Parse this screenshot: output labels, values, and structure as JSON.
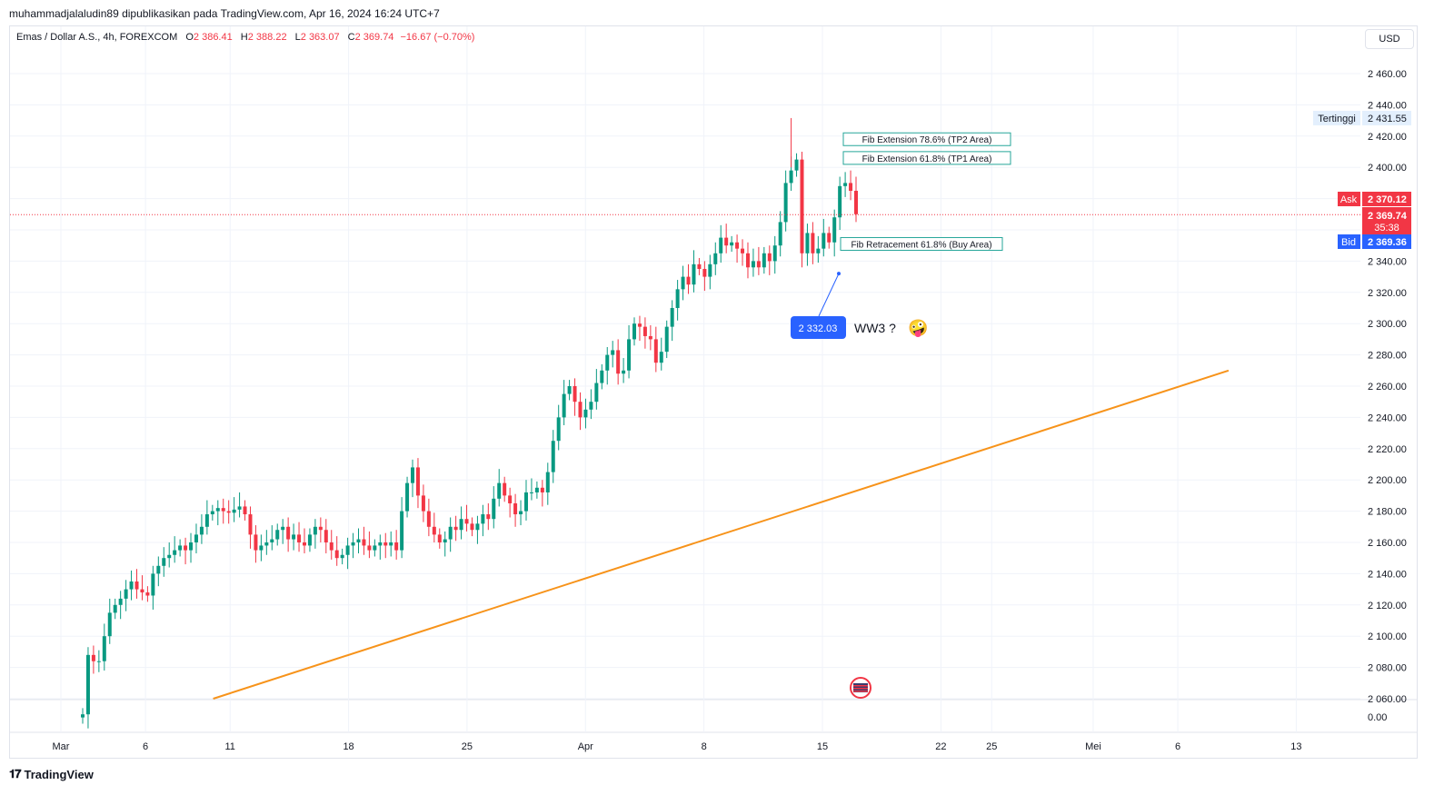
{
  "header": {
    "publisher_line": "muhammadjalaludin89 dipublikasikan pada TradingView.com, Apr 16, 2024 16:24 UTC+7"
  },
  "legend": {
    "symbol": "Emas / Dollar A.S., 4h, FOREXCOM",
    "o_label": "O",
    "o": "2 386.41",
    "h_label": "H",
    "h": "2 388.22",
    "l_label": "L",
    "l": "2 363.07",
    "c_label": "C",
    "c": "2 369.74",
    "change": "−16.67 (−0.70%)"
  },
  "currency_button": "USD",
  "brand": {
    "name": "TradingView"
  },
  "colors": {
    "up": "#089981",
    "down": "#f23645",
    "trendline": "#f7931a",
    "fib_border": "#26a69a",
    "bid": "#2962ff",
    "ask": "#f23645",
    "grid": "#f0f3fa"
  },
  "chart_data": {
    "type": "candlestick",
    "instrument": "Emas / Dollar A.S.",
    "interval": "4h",
    "ylim": [
      2050,
      2470
    ],
    "y_ticks": [
      2460,
      2440,
      2420,
      2400,
      2380,
      2360,
      2340,
      2320,
      2300,
      2280,
      2260,
      2240,
      2220,
      2200,
      2180,
      2160,
      2140,
      2120,
      2100,
      2080,
      2060
    ],
    "y_tick_labels": [
      "2 460.00",
      "2 440.00",
      "2 420.00",
      "2 400.00",
      "2 380.00",
      "2 360.00",
      "2 340.00",
      "2 320.00",
      "2 300.00",
      "2 280.00",
      "2 260.00",
      "2 240.00",
      "2 220.00",
      "2 200.00",
      "2 180.00",
      "2 160.00",
      "2 140.00",
      "2 120.00",
      "2 100.00",
      "2 080.00",
      "2 060.00"
    ],
    "y_bottom_label": "0.00",
    "x_labels": [
      "Mar",
      "6",
      "11",
      "18",
      "25",
      "Apr",
      "8",
      "15",
      "22",
      "25",
      "Mei",
      "6",
      "13"
    ],
    "x_label_dates": [
      "2024-03-01",
      "2024-03-06",
      "2024-03-11",
      "2024-03-18",
      "2024-03-25",
      "2024-04-01",
      "2024-04-08",
      "2024-04-15",
      "2024-04-22",
      "2024-04-25",
      "2024-05-01",
      "2024-05-06",
      "2024-05-13"
    ],
    "candles_close": [
      2050,
      2088,
      2084,
      2084,
      2100,
      2115,
      2120,
      2124,
      2130,
      2135,
      2130,
      2128,
      2126,
      2140,
      2145,
      2150,
      2152,
      2155,
      2158,
      2155,
      2160,
      2165,
      2170,
      2178,
      2180,
      2182,
      2180,
      2179,
      2181,
      2183,
      2178,
      2165,
      2155,
      2158,
      2160,
      2162,
      2168,
      2170,
      2162,
      2165,
      2160,
      2158,
      2165,
      2170,
      2168,
      2160,
      2155,
      2150,
      2152,
      2158,
      2160,
      2162,
      2158,
      2155,
      2158,
      2160,
      2158,
      2160,
      2155,
      2180,
      2198,
      2208,
      2190,
      2180,
      2170,
      2165,
      2160,
      2162,
      2170,
      2168,
      2175,
      2172,
      2168,
      2172,
      2178,
      2175,
      2188,
      2198,
      2190,
      2185,
      2178,
      2180,
      2192,
      2192,
      2195,
      2192,
      2205,
      2225,
      2240,
      2255,
      2260,
      2250,
      2240,
      2245,
      2250,
      2262,
      2270,
      2280,
      2283,
      2268,
      2270,
      2290,
      2300,
      2298,
      2292,
      2290,
      2275,
      2282,
      2298,
      2310,
      2322,
      2330,
      2325,
      2338,
      2335,
      2330,
      2338,
      2345,
      2355,
      2350,
      2352,
      2348,
      2345,
      2336,
      2340,
      2336,
      2345,
      2340,
      2350,
      2365,
      2390,
      2398,
      2405,
      2345,
      2358,
      2345,
      2348,
      2358,
      2352,
      2368,
      2388,
      2390,
      2385,
      2370
    ],
    "candles_open_first": 2048,
    "wick_extremes": {
      "max_high": 2431.55,
      "min_low": 2050
    },
    "last_price": {
      "value": "2 369.74",
      "countdown": "35:38"
    },
    "ask": {
      "label": "Ask",
      "value": "2 370.12"
    },
    "bid": {
      "label": "Bid",
      "value": "2 369.36"
    },
    "highest": {
      "label": "Tertinggi",
      "value": "2 431.55"
    },
    "fib_levels": [
      {
        "label": "Fib Extension 78.6% (TP2 Area)",
        "price": 2418
      },
      {
        "label": "Fib Extension 61.8% (TP1 Area)",
        "price": 2406
      },
      {
        "label": "Fib Retracement 61.8% (Buy Area)",
        "price": 2351
      }
    ],
    "callout": {
      "price_label": "2 332.03",
      "text": "WW3 ?",
      "emoji": "🤪"
    },
    "trendline": {
      "start": {
        "x": "2024-03-10",
        "y": 2060
      },
      "end": {
        "x": "2024-05-09",
        "y": 2270
      }
    }
  }
}
